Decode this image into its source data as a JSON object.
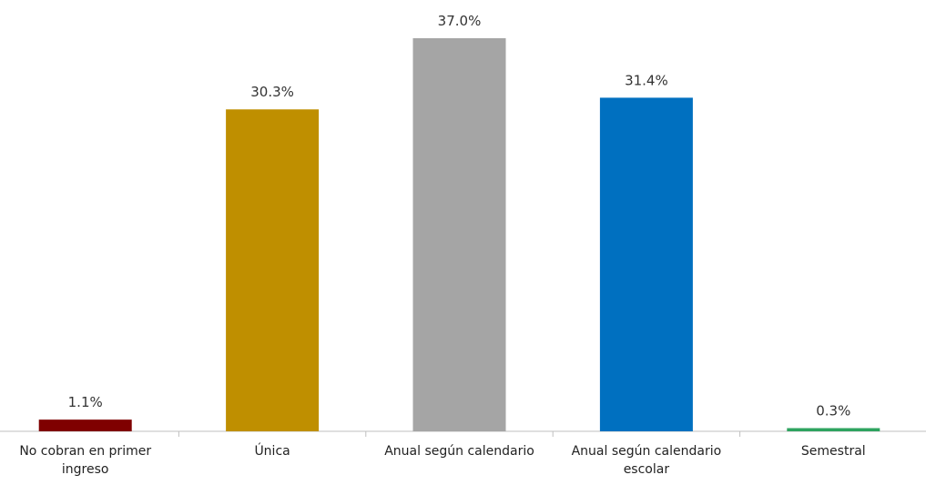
{
  "chart_data": {
    "type": "bar",
    "categories": [
      "No cobran en primer ingreso",
      "Única",
      "Anual según calendario",
      "Anual según calendario escolar",
      "Semestral"
    ],
    "values": [
      1.1,
      30.3,
      37.0,
      31.4,
      0.3
    ],
    "value_labels": [
      "1.1%",
      "30.3%",
      "37.0%",
      "31.4%",
      "0.3%"
    ],
    "colors": [
      "#7f0000",
      "#bf8f00",
      "#a5a5a5",
      "#0070c0",
      "#2ea35f"
    ]
  }
}
